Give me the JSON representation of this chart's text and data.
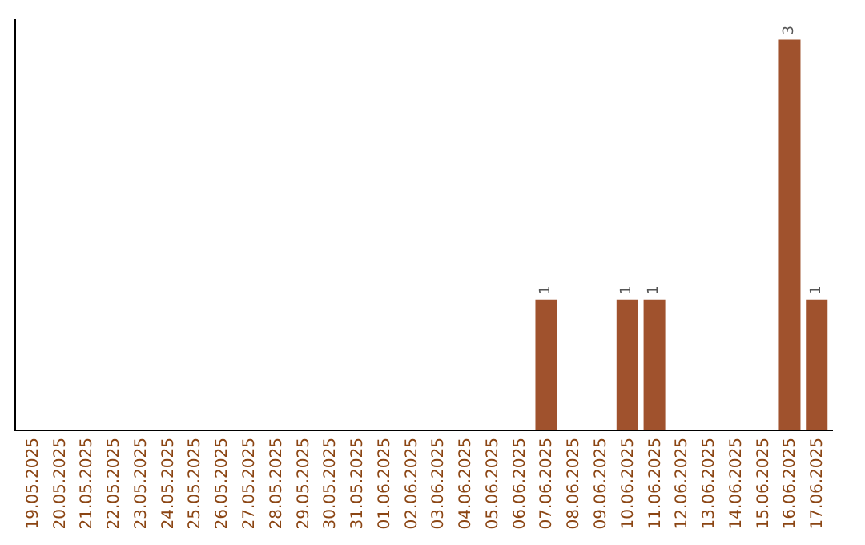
{
  "chart_data": {
    "type": "bar",
    "categories": [
      "19.05.2025",
      "20.05.2025",
      "21.05.2025",
      "22.05.2025",
      "23.05.2025",
      "24.05.2025",
      "25.05.2025",
      "26.05.2025",
      "27.05.2025",
      "28.05.2025",
      "29.05.2025",
      "30.05.2025",
      "31.05.2025",
      "01.06.2025",
      "02.06.2025",
      "03.06.2025",
      "04.06.2025",
      "05.06.2025",
      "06.06.2025",
      "07.06.2025",
      "08.06.2025",
      "09.06.2025",
      "10.06.2025",
      "11.06.2025",
      "12.06.2025",
      "13.06.2025",
      "14.06.2025",
      "15.06.2025",
      "16.06.2025",
      "17.06.2025"
    ],
    "values": [
      null,
      null,
      null,
      null,
      null,
      null,
      null,
      null,
      null,
      null,
      null,
      null,
      null,
      null,
      null,
      null,
      null,
      null,
      null,
      1,
      null,
      null,
      1,
      1,
      null,
      null,
      null,
      null,
      3,
      1
    ],
    "value_labels": [
      null,
      null,
      null,
      null,
      null,
      null,
      null,
      null,
      null,
      null,
      null,
      null,
      null,
      null,
      null,
      null,
      null,
      null,
      null,
      "1",
      null,
      null,
      "1",
      "1",
      null,
      null,
      null,
      null,
      "3",
      "1"
    ],
    "color": "#a0522d",
    "tick_labels": "x",
    "legend": false
  }
}
